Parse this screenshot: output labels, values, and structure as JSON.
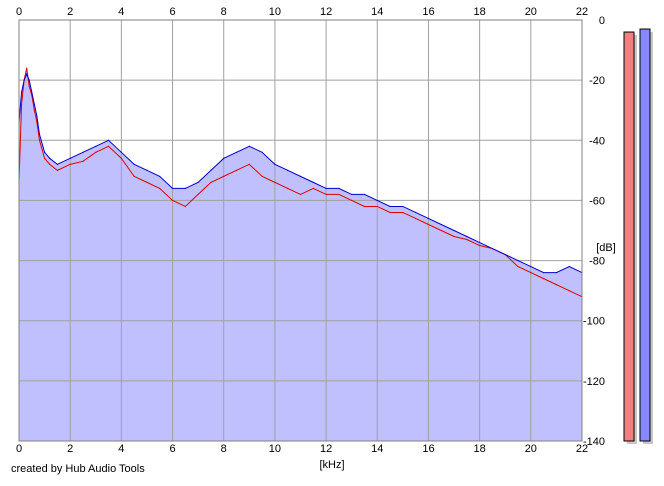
{
  "chart_data": {
    "type": "area",
    "x_unit_label": "[kHz]",
    "y_unit_label": "[dB]",
    "xlim": [
      0,
      22
    ],
    "ylim": [
      -140,
      0
    ],
    "x_ticks": [
      0,
      2,
      4,
      6,
      8,
      10,
      12,
      14,
      16,
      18,
      20,
      22
    ],
    "y_ticks": [
      0,
      -20,
      -40,
      -60,
      -80,
      -100,
      -120,
      -140
    ],
    "grid": true,
    "series": [
      {
        "color": "#e00000",
        "x": [
          0,
          0.1,
          0.2,
          0.3,
          0.4,
          0.5,
          0.6,
          0.7,
          0.8,
          1,
          1.2,
          1.5,
          2,
          2.5,
          3,
          3.5,
          4,
          4.5,
          5,
          5.5,
          6,
          6.5,
          7,
          7.5,
          8,
          8.5,
          9,
          9.5,
          10,
          10.5,
          11,
          11.5,
          12,
          12.5,
          13,
          13.5,
          14,
          14.5,
          15,
          15.5,
          16,
          16.5,
          17,
          17.5,
          18,
          18.5,
          19,
          19.5,
          20,
          20.5,
          21,
          21.5,
          22
        ],
        "values": [
          -54,
          -28,
          -20,
          -16,
          -22,
          -25,
          -30,
          -34,
          -40,
          -46,
          -48,
          -50,
          -48,
          -47,
          -44,
          -42,
          -46,
          -52,
          -54,
          -56,
          -60,
          -62,
          -58,
          -54,
          -52,
          -50,
          -48,
          -52,
          -54,
          -56,
          -58,
          -56,
          -58,
          -58,
          -60,
          -62,
          -62,
          -64,
          -64,
          -66,
          -68,
          -70,
          -72,
          -73,
          -75,
          -76,
          -78,
          -82,
          -84,
          -86,
          -88,
          -90,
          -92
        ]
      },
      {
        "color": "#0000d0",
        "x": [
          0,
          0.1,
          0.2,
          0.3,
          0.4,
          0.5,
          0.6,
          0.7,
          0.8,
          1,
          1.2,
          1.5,
          2,
          2.5,
          3,
          3.5,
          4,
          4.5,
          5,
          5.5,
          6,
          6.5,
          7,
          7.5,
          8,
          8.5,
          9,
          9.5,
          10,
          10.5,
          11,
          11.5,
          12,
          12.5,
          13,
          13.5,
          14,
          14.5,
          15,
          15.5,
          16,
          16.5,
          17,
          17.5,
          18,
          18.5,
          19,
          19.5,
          20,
          20.5,
          21,
          21.5,
          22
        ],
        "values": [
          -34,
          -24,
          -20,
          -18,
          -20,
          -24,
          -28,
          -32,
          -38,
          -44,
          -46,
          -48,
          -46,
          -44,
          -42,
          -40,
          -44,
          -48,
          -50,
          -52,
          -56,
          -56,
          -54,
          -50,
          -46,
          -44,
          -42,
          -44,
          -48,
          -50,
          -52,
          -54,
          -56,
          -56,
          -58,
          -58,
          -60,
          -62,
          -62,
          -64,
          -66,
          -68,
          -70,
          -72,
          -74,
          -76,
          -78,
          -80,
          -82,
          -84,
          -84,
          -82,
          -84
        ]
      }
    ],
    "channel_meters": [
      {
        "color": "#f08080",
        "top_db": -4
      },
      {
        "color": "#8888ff",
        "top_db": -3
      }
    ]
  },
  "footer": {
    "credit": "created by Hub Audio Tools"
  }
}
